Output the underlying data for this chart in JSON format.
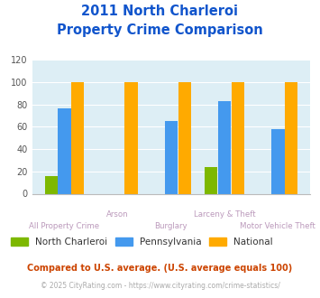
{
  "title_line1": "2011 North Charleroi",
  "title_line2": "Property Crime Comparison",
  "categories": [
    "All Property Crime",
    "Arson",
    "Burglary",
    "Larceny & Theft",
    "Motor Vehicle Theft"
  ],
  "north_charleroi": [
    16,
    0,
    0,
    24,
    0
  ],
  "pennsylvania": [
    76,
    0,
    65,
    83,
    58
  ],
  "national": [
    100,
    100,
    100,
    100,
    100
  ],
  "color_nc": "#7db800",
  "color_pa": "#4499ee",
  "color_nat": "#ffaa00",
  "ylim": [
    0,
    120
  ],
  "yticks": [
    0,
    20,
    40,
    60,
    80,
    100,
    120
  ],
  "bg_color": "#ddeef5",
  "title_color": "#1155cc",
  "xlabel_color": "#bb99bb",
  "legend_label_nc": "North Charleroi",
  "legend_label_pa": "Pennsylvania",
  "legend_label_nat": "National",
  "legend_text_color": "#333333",
  "footnote1": "Compared to U.S. average. (U.S. average equals 100)",
  "footnote2": "© 2025 CityRating.com - https://www.cityrating.com/crime-statistics/",
  "footnote1_color": "#cc4400",
  "footnote2_color": "#aaaaaa",
  "footnote2_url_color": "#4499ee"
}
